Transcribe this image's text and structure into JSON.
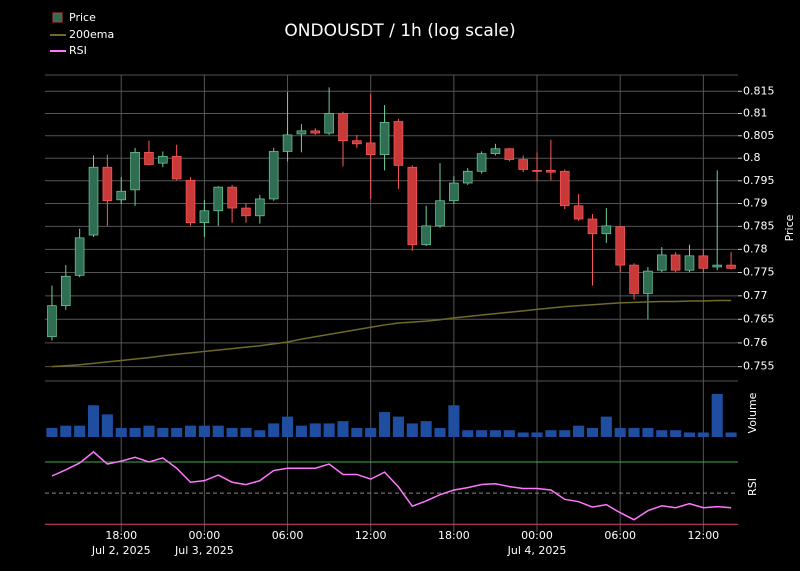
{
  "chart_data": {
    "type": "candlestick",
    "title": "ONDOUSDT / 1h (log scale)",
    "ylabel": "Price",
    "log_scale": true,
    "grid": true,
    "legend": "upper left",
    "categories": [
      null,
      null,
      null,
      null,
      null,
      "18:00",
      null,
      null,
      null,
      null,
      null,
      "00:00",
      null,
      null,
      null,
      null,
      null,
      "06:00",
      null,
      null,
      null,
      null,
      null,
      "12:00",
      null,
      null,
      null,
      null,
      null,
      "18:00",
      null,
      null,
      null,
      null,
      null,
      "00:00",
      null,
      null,
      null,
      null,
      null,
      "06:00",
      null,
      null,
      null,
      null,
      null,
      "12:00",
      null,
      null
    ],
    "category_dates": [
      null,
      null,
      null,
      null,
      null,
      "Jul 2, 2025",
      null,
      null,
      null,
      null,
      null,
      "Jul 3, 2025",
      null,
      null,
      null,
      null,
      null,
      null,
      null,
      null,
      null,
      null,
      null,
      null,
      null,
      null,
      null,
      null,
      null,
      null,
      null,
      null,
      null,
      null,
      null,
      "Jul 4, 2025",
      null,
      null,
      null,
      null,
      null,
      null,
      null,
      null,
      null,
      null,
      null,
      null,
      null,
      null
    ],
    "ylim": [
      0.752,
      0.8187
    ],
    "yticks": [
      0.755,
      0.76,
      0.765,
      0.77,
      0.775,
      0.78,
      0.785,
      0.79,
      0.795,
      0.8,
      0.805,
      0.81,
      0.815
    ],
    "series": [
      {
        "name": "Price",
        "type": "candlestick",
        "up_color": "#2f6e52",
        "up_edge": "#6fd0a0",
        "down_color": "#c83a3a",
        "down_edge": "#ff5a5a",
        "open": [
          0.7613,
          0.7679,
          0.7744,
          0.7831,
          0.798,
          0.7908,
          0.793,
          0.8013,
          0.7989,
          0.8004,
          0.7951,
          0.7858,
          0.7884,
          0.7936,
          0.789,
          0.7873,
          0.791,
          0.8015,
          0.8054,
          0.8061,
          0.8056,
          0.81,
          0.8039,
          0.8034,
          0.8008,
          0.8082,
          0.798,
          0.781,
          0.7851,
          0.7906,
          0.7945,
          0.7971,
          0.801,
          0.8021,
          0.7997,
          0.7973,
          0.7973,
          0.7971,
          0.7895,
          0.7866,
          0.7834,
          0.7849,
          0.7766,
          0.7705,
          0.7755,
          0.7788,
          0.7755,
          0.7786,
          0.7762,
          0.7766
        ],
        "high": [
          0.7722,
          0.7766,
          0.7845,
          0.8006,
          0.8008,
          0.7958,
          0.8023,
          0.8039,
          0.8015,
          0.803,
          0.7958,
          0.7908,
          0.7938,
          0.7941,
          0.7901,
          0.7919,
          0.8023,
          0.8148,
          0.8076,
          0.8067,
          0.8159,
          0.8104,
          0.8052,
          0.8143,
          0.8119,
          0.8088,
          0.7984,
          0.7895,
          0.7989,
          0.796,
          0.7978,
          0.8015,
          0.8032,
          0.8023,
          0.8006,
          0.8013,
          0.8041,
          0.7975,
          0.7921,
          0.7877,
          0.789,
          0.7851,
          0.777,
          0.7762,
          0.7805,
          0.7794,
          0.781,
          0.7801,
          0.7973,
          0.7794
        ],
        "low": [
          0.7605,
          0.767,
          0.774,
          0.7827,
          0.7851,
          0.7899,
          0.7895,
          0.7984,
          0.798,
          0.7951,
          0.7851,
          0.7827,
          0.7851,
          0.7858,
          0.7858,
          0.7856,
          0.7906,
          0.7993,
          0.8013,
          0.8052,
          0.8052,
          0.7982,
          0.8023,
          0.791,
          0.7973,
          0.7932,
          0.7797,
          0.7807,
          0.7847,
          0.7899,
          0.7941,
          0.7966,
          0.8006,
          0.7993,
          0.7969,
          0.7949,
          0.7951,
          0.7888,
          0.7862,
          0.7722,
          0.7814,
          0.7751,
          0.7692,
          0.765,
          0.7751,
          0.7751,
          0.7751,
          0.7749,
          0.7755,
          0.7757
        ],
        "close": [
          0.7679,
          0.7742,
          0.7825,
          0.798,
          0.7906,
          0.7927,
          0.8013,
          0.7986,
          0.8004,
          0.7954,
          0.7858,
          0.7884,
          0.7936,
          0.789,
          0.7873,
          0.791,
          0.8015,
          0.8052,
          0.8061,
          0.8056,
          0.81,
          0.8039,
          0.8032,
          0.8008,
          0.808,
          0.7984,
          0.781,
          0.7851,
          0.7906,
          0.7945,
          0.7971,
          0.801,
          0.8021,
          0.7997,
          0.7975,
          0.7971,
          0.7969,
          0.7895,
          0.7866,
          0.7834,
          0.7851,
          0.7766,
          0.7705,
          0.7753,
          0.7788,
          0.7755,
          0.7786,
          0.7759,
          0.7766,
          0.7759
        ]
      },
      {
        "name": "200ema",
        "type": "line",
        "color": "#6e6b28",
        "values": [
          0.755,
          0.7552,
          0.7554,
          0.7557,
          0.756,
          0.7563,
          0.7566,
          0.7569,
          0.7573,
          0.7576,
          0.7579,
          0.7582,
          0.7585,
          0.7588,
          0.7591,
          0.7594,
          0.7598,
          0.7602,
          0.7608,
          0.7613,
          0.7618,
          0.7623,
          0.7628,
          0.7633,
          0.7638,
          0.7642,
          0.7644,
          0.7646,
          0.7649,
          0.7653,
          0.7656,
          0.7659,
          0.7662,
          0.7665,
          0.7668,
          0.7671,
          0.7674,
          0.7677,
          0.7679,
          0.7681,
          0.7683,
          0.7685,
          0.7686,
          0.7687,
          0.7688,
          0.7688,
          0.7689,
          0.7689,
          0.769,
          0.769
        ]
      }
    ],
    "volume": {
      "label": "Volume",
      "color": "#1f4da0",
      "ylim": [
        0,
        45
      ],
      "values": [
        8,
        10,
        10,
        28,
        20,
        8,
        8,
        10,
        8,
        8,
        10,
        10,
        10,
        8,
        8,
        6,
        12,
        18,
        10,
        12,
        12,
        14,
        8,
        8,
        22,
        18,
        12,
        14,
        8,
        28,
        6,
        6,
        6,
        6,
        4,
        4,
        6,
        6,
        10,
        8,
        18,
        8,
        8,
        8,
        6,
        6,
        4,
        4,
        38,
        4
      ]
    },
    "rsi": {
      "name": "RSI",
      "label": "RSI",
      "color": "#ff77ff",
      "ylim": [
        25,
        79
      ],
      "levels": [
        {
          "value": 70,
          "color": "#3fae4a"
        },
        {
          "value": 50,
          "color": "#888888"
        },
        {
          "value": 30,
          "color": "#e0407a"
        }
      ],
      "values": [
        61,
        65,
        69.4,
        76.5,
        68.7,
        70.6,
        73,
        70,
        72.6,
        66,
        57,
        58,
        61.6,
        57,
        55.5,
        58,
        64.5,
        66,
        66,
        66,
        68.7,
        62,
        62,
        59,
        63.5,
        54,
        41.6,
        45,
        49,
        52,
        53.5,
        55.5,
        56,
        54.2,
        53,
        53,
        52,
        46,
        44.5,
        41,
        42.6,
        37.4,
        32.9,
        38.7,
        41.9,
        40.6,
        43.2,
        40.6,
        41.3,
        40.6
      ]
    }
  }
}
